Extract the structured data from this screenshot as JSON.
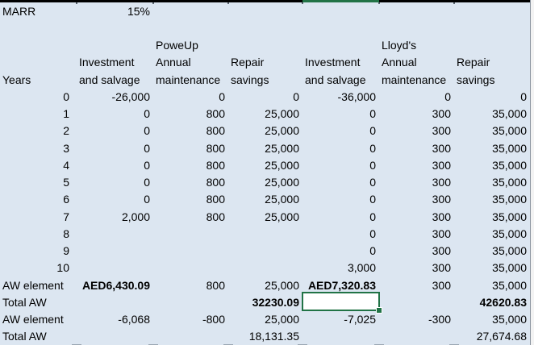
{
  "colors": {
    "sheet_fill": "#dce6f1",
    "selection_green": "#217346",
    "top_border": "#000000",
    "text": "#000000"
  },
  "active_cell": {
    "row": 18,
    "col": "E",
    "value": ""
  },
  "grid": {
    "cells": [
      {
        "r": 1,
        "c": "A",
        "text": "MARR",
        "align": "left",
        "name": "marr-label"
      },
      {
        "r": 1,
        "c": "B",
        "text": "15%",
        "name": "marr-value"
      },
      {
        "r": 3,
        "c": "C",
        "text": "PoweUp",
        "align": "left",
        "name": "option1-title"
      },
      {
        "r": 3,
        "c": "F",
        "text": "Lloyd's",
        "align": "left",
        "name": "option2-title"
      },
      {
        "r": 4,
        "c": "B",
        "text": "Investment",
        "align": "left",
        "name": "header-investment-1"
      },
      {
        "r": 4,
        "c": "C",
        "text": "Annual",
        "align": "left",
        "name": "header-annual-1"
      },
      {
        "r": 4,
        "c": "D",
        "text": "Repair",
        "align": "left",
        "name": "header-repair-1"
      },
      {
        "r": 4,
        "c": "E",
        "text": "Investment",
        "align": "left",
        "name": "header-investment-2"
      },
      {
        "r": 4,
        "c": "F",
        "text": "Annual",
        "align": "left",
        "name": "header-annual-2"
      },
      {
        "r": 4,
        "c": "G",
        "text": "Repair",
        "align": "left",
        "name": "header-repair-2"
      },
      {
        "r": 5,
        "c": "A",
        "text": "Years",
        "align": "left",
        "name": "header-years"
      },
      {
        "r": 5,
        "c": "B",
        "text": "and salvage",
        "align": "left",
        "name": "header-salvage-1"
      },
      {
        "r": 5,
        "c": "C",
        "text": "maintenance",
        "align": "left",
        "name": "header-maintenance-1"
      },
      {
        "r": 5,
        "c": "D",
        "text": "savings",
        "align": "left",
        "name": "header-savings-1"
      },
      {
        "r": 5,
        "c": "E",
        "text": "and salvage",
        "align": "left",
        "name": "header-salvage-2"
      },
      {
        "r": 5,
        "c": "F",
        "text": "maintenance",
        "align": "left",
        "name": "header-maintenance-2"
      },
      {
        "r": 5,
        "c": "G",
        "text": "savings",
        "align": "left",
        "name": "header-savings-2"
      },
      {
        "r": 6,
        "c": "A",
        "text": "0"
      },
      {
        "r": 6,
        "c": "B",
        "text": "-26,000"
      },
      {
        "r": 6,
        "c": "C",
        "text": "0"
      },
      {
        "r": 6,
        "c": "D",
        "text": "0"
      },
      {
        "r": 6,
        "c": "E",
        "text": "-36,000"
      },
      {
        "r": 6,
        "c": "F",
        "text": "0"
      },
      {
        "r": 6,
        "c": "G",
        "text": "0"
      },
      {
        "r": 7,
        "c": "A",
        "text": "1"
      },
      {
        "r": 7,
        "c": "B",
        "text": "0"
      },
      {
        "r": 7,
        "c": "C",
        "text": "800"
      },
      {
        "r": 7,
        "c": "D",
        "text": "25,000"
      },
      {
        "r": 7,
        "c": "E",
        "text": "0"
      },
      {
        "r": 7,
        "c": "F",
        "text": "300"
      },
      {
        "r": 7,
        "c": "G",
        "text": "35,000"
      },
      {
        "r": 8,
        "c": "A",
        "text": "2"
      },
      {
        "r": 8,
        "c": "B",
        "text": "0"
      },
      {
        "r": 8,
        "c": "C",
        "text": "800"
      },
      {
        "r": 8,
        "c": "D",
        "text": "25,000"
      },
      {
        "r": 8,
        "c": "E",
        "text": "0"
      },
      {
        "r": 8,
        "c": "F",
        "text": "300"
      },
      {
        "r": 8,
        "c": "G",
        "text": "35,000"
      },
      {
        "r": 9,
        "c": "A",
        "text": "3"
      },
      {
        "r": 9,
        "c": "B",
        "text": "0"
      },
      {
        "r": 9,
        "c": "C",
        "text": "800"
      },
      {
        "r": 9,
        "c": "D",
        "text": "25,000"
      },
      {
        "r": 9,
        "c": "E",
        "text": "0"
      },
      {
        "r": 9,
        "c": "F",
        "text": "300"
      },
      {
        "r": 9,
        "c": "G",
        "text": "35,000"
      },
      {
        "r": 10,
        "c": "A",
        "text": "4"
      },
      {
        "r": 10,
        "c": "B",
        "text": "0"
      },
      {
        "r": 10,
        "c": "C",
        "text": "800"
      },
      {
        "r": 10,
        "c": "D",
        "text": "25,000"
      },
      {
        "r": 10,
        "c": "E",
        "text": "0"
      },
      {
        "r": 10,
        "c": "F",
        "text": "300"
      },
      {
        "r": 10,
        "c": "G",
        "text": "35,000"
      },
      {
        "r": 11,
        "c": "A",
        "text": "5"
      },
      {
        "r": 11,
        "c": "B",
        "text": "0"
      },
      {
        "r": 11,
        "c": "C",
        "text": "800"
      },
      {
        "r": 11,
        "c": "D",
        "text": "25,000"
      },
      {
        "r": 11,
        "c": "E",
        "text": "0"
      },
      {
        "r": 11,
        "c": "F",
        "text": "300"
      },
      {
        "r": 11,
        "c": "G",
        "text": "35,000"
      },
      {
        "r": 12,
        "c": "A",
        "text": "6"
      },
      {
        "r": 12,
        "c": "B",
        "text": "0"
      },
      {
        "r": 12,
        "c": "C",
        "text": "800"
      },
      {
        "r": 12,
        "c": "D",
        "text": "25,000"
      },
      {
        "r": 12,
        "c": "E",
        "text": "0"
      },
      {
        "r": 12,
        "c": "F",
        "text": "300"
      },
      {
        "r": 12,
        "c": "G",
        "text": "35,000"
      },
      {
        "r": 13,
        "c": "A",
        "text": "7"
      },
      {
        "r": 13,
        "c": "B",
        "text": "2,000"
      },
      {
        "r": 13,
        "c": "C",
        "text": "800"
      },
      {
        "r": 13,
        "c": "D",
        "text": "25,000"
      },
      {
        "r": 13,
        "c": "E",
        "text": "0"
      },
      {
        "r": 13,
        "c": "F",
        "text": "300"
      },
      {
        "r": 13,
        "c": "G",
        "text": "35,000"
      },
      {
        "r": 14,
        "c": "A",
        "text": "8"
      },
      {
        "r": 14,
        "c": "E",
        "text": "0"
      },
      {
        "r": 14,
        "c": "F",
        "text": "300"
      },
      {
        "r": 14,
        "c": "G",
        "text": "35,000"
      },
      {
        "r": 15,
        "c": "A",
        "text": "9"
      },
      {
        "r": 15,
        "c": "E",
        "text": "0"
      },
      {
        "r": 15,
        "c": "F",
        "text": "300"
      },
      {
        "r": 15,
        "c": "G",
        "text": "35,000"
      },
      {
        "r": 16,
        "c": "A",
        "text": "10"
      },
      {
        "r": 16,
        "c": "E",
        "text": "3,000"
      },
      {
        "r": 16,
        "c": "F",
        "text": "300"
      },
      {
        "r": 16,
        "c": "G",
        "text": "35,000"
      },
      {
        "r": 17,
        "c": "A",
        "text": "AW element",
        "align": "left",
        "name": "row-label-aw-element-1"
      },
      {
        "r": 17,
        "c": "B",
        "text": "AED6,430.09",
        "bold": true,
        "name": "aw-element-poweup"
      },
      {
        "r": 17,
        "c": "C",
        "text": "800"
      },
      {
        "r": 17,
        "c": "D",
        "text": "25,000"
      },
      {
        "r": 17,
        "c": "E",
        "text": "AED7,320.83",
        "bold": true,
        "name": "aw-element-lloyds"
      },
      {
        "r": 17,
        "c": "F",
        "text": "300"
      },
      {
        "r": 17,
        "c": "G",
        "text": "35,000"
      },
      {
        "r": 18,
        "c": "A",
        "text": "Total AW",
        "align": "left",
        "name": "row-label-total-aw-1"
      },
      {
        "r": 18,
        "c": "D",
        "text": "32230.09",
        "bold": true,
        "name": "total-aw-poweup"
      },
      {
        "r": 18,
        "c": "G",
        "text": "42620.83",
        "bold": true,
        "name": "total-aw-lloyds"
      },
      {
        "r": 19,
        "c": "A",
        "text": "AW element",
        "align": "left",
        "name": "row-label-aw-element-2"
      },
      {
        "r": 19,
        "c": "B",
        "text": "-6,068"
      },
      {
        "r": 19,
        "c": "C",
        "text": "-800"
      },
      {
        "r": 19,
        "c": "D",
        "text": "25,000"
      },
      {
        "r": 19,
        "c": "E",
        "text": "-7,025"
      },
      {
        "r": 19,
        "c": "F",
        "text": "-300"
      },
      {
        "r": 19,
        "c": "G",
        "text": "35,000"
      },
      {
        "r": 20,
        "c": "A",
        "text": "Total AW",
        "align": "left",
        "name": "row-label-total-aw-2"
      },
      {
        "r": 20,
        "c": "D",
        "text": "18,131.35",
        "name": "total-aw2-poweup"
      },
      {
        "r": 20,
        "c": "G",
        "text": "27,674.68",
        "name": "total-aw2-lloyds"
      }
    ]
  }
}
